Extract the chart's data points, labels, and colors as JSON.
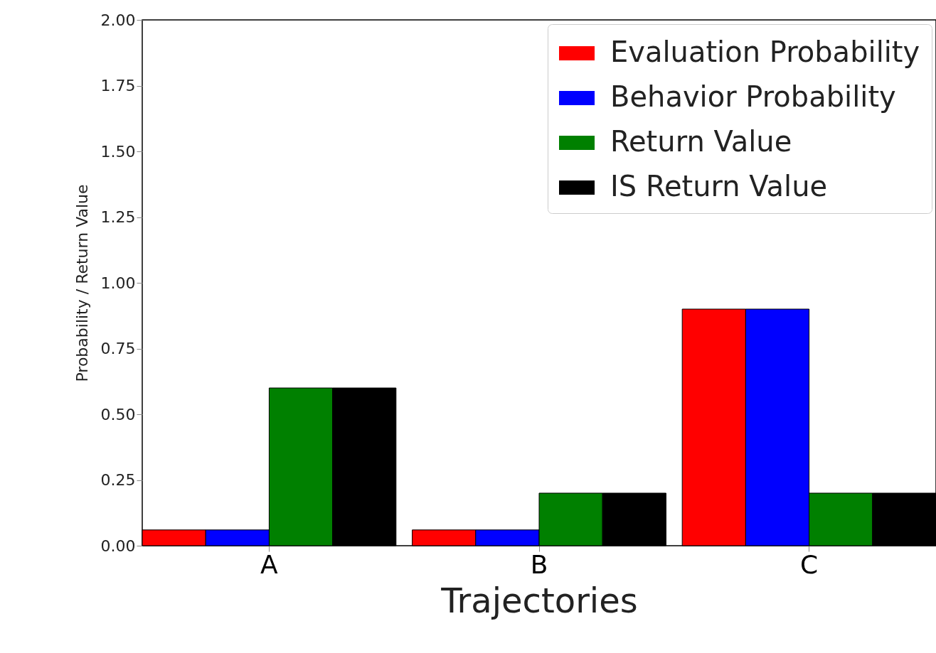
{
  "chart_data": {
    "type": "bar",
    "xlabel": "Trajectories",
    "ylabel": "Probability / Return Value",
    "categories": [
      "A",
      "B",
      "C"
    ],
    "series": [
      {
        "name": "Evaluation Probability",
        "color": "#ff0000",
        "values": [
          0.06,
          0.06,
          0.9
        ]
      },
      {
        "name": "Behavior Probability",
        "color": "#0000ff",
        "values": [
          0.06,
          0.06,
          0.9
        ]
      },
      {
        "name": "Return Value",
        "color": "#008000",
        "values": [
          0.6,
          0.2,
          0.2
        ]
      },
      {
        "name": "IS Return Value",
        "color": "#000000",
        "values": [
          0.6,
          0.2,
          0.2
        ]
      }
    ],
    "ylim": [
      0,
      2
    ],
    "yticks": [
      {
        "value": 0,
        "label": "0.00"
      },
      {
        "value": 0.25,
        "label": "0.25"
      },
      {
        "value": 0.5,
        "label": "0.50"
      },
      {
        "value": 0.75,
        "label": "0.75"
      },
      {
        "value": 1,
        "label": "1.00"
      },
      {
        "value": 1.25,
        "label": "1.25"
      },
      {
        "value": 1.5,
        "label": "1.50"
      },
      {
        "value": 1.75,
        "label": "1.75"
      },
      {
        "value": 2,
        "label": "2.00"
      }
    ],
    "legend": "top right",
    "grid": false
  }
}
